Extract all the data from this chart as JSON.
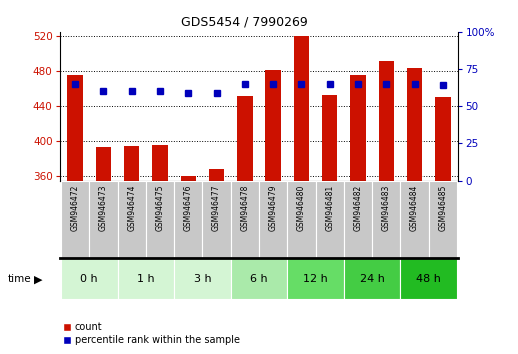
{
  "title": "GDS5454 / 7990269",
  "samples": [
    "GSM946472",
    "GSM946473",
    "GSM946474",
    "GSM946475",
    "GSM946476",
    "GSM946477",
    "GSM946478",
    "GSM946479",
    "GSM946480",
    "GSM946481",
    "GSM946482",
    "GSM946483",
    "GSM946484",
    "GSM946485"
  ],
  "counts": [
    476,
    393,
    395,
    396,
    360,
    368,
    452,
    481,
    520,
    453,
    476,
    492,
    484,
    450
  ],
  "percentiles": [
    65,
    60,
    60,
    60,
    59,
    59,
    65,
    65,
    65,
    65,
    65,
    65,
    65,
    64
  ],
  "ylim_left": [
    355,
    525
  ],
  "ylim_right": [
    0,
    100
  ],
  "yticks_left": [
    360,
    400,
    440,
    480,
    520
  ],
  "yticks_right": [
    0,
    25,
    50,
    75,
    100
  ],
  "time_groups": [
    {
      "label": "0 h",
      "start": 0,
      "end": 2,
      "color": "#d4f5d4"
    },
    {
      "label": "1 h",
      "start": 2,
      "end": 4,
      "color": "#d4f5d4"
    },
    {
      "label": "3 h",
      "start": 4,
      "end": 6,
      "color": "#d4f5d4"
    },
    {
      "label": "6 h",
      "start": 6,
      "end": 8,
      "color": "#aaeaaa"
    },
    {
      "label": "12 h",
      "start": 8,
      "end": 10,
      "color": "#66dd66"
    },
    {
      "label": "24 h",
      "start": 10,
      "end": 12,
      "color": "#44cc44"
    },
    {
      "label": "48 h",
      "start": 12,
      "end": 14,
      "color": "#22bb22"
    }
  ],
  "bar_color": "#cc1100",
  "percentile_color": "#0000bb",
  "left_label_color": "#cc1100",
  "right_label_color": "#0000bb",
  "sample_box_color": "#c8c8c8",
  "sample_box_edge": "#ffffff"
}
